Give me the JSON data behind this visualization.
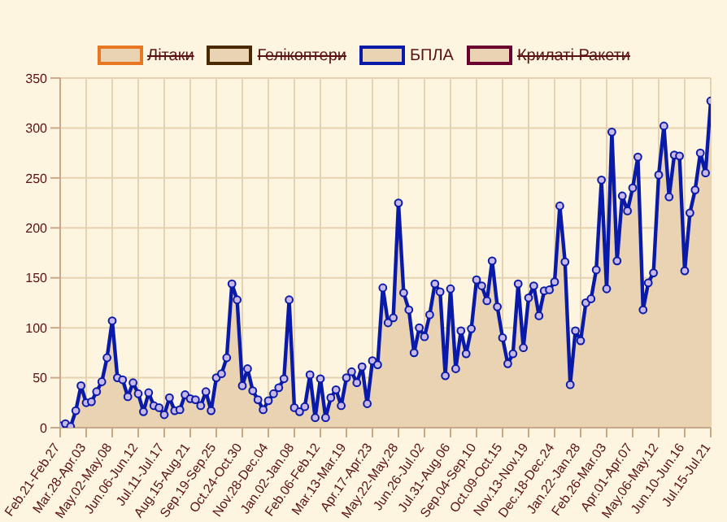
{
  "chart_data": {
    "type": "area",
    "categories": [
      "Feb.21-Feb.27",
      null,
      null,
      null,
      null,
      "Mar.28-Apr.03",
      null,
      null,
      null,
      null,
      "May.02-May.08",
      null,
      null,
      null,
      null,
      "Jun.06-Jun.12",
      null,
      null,
      null,
      null,
      "Jul.11-Jul.17",
      null,
      null,
      null,
      null,
      "Aug.15-Aug.21",
      null,
      null,
      null,
      null,
      "Sep.19-Sep.25",
      null,
      null,
      null,
      null,
      "Oct.24-Oct.30",
      null,
      null,
      null,
      null,
      "Nov.28-Dec.04",
      null,
      null,
      null,
      null,
      "Jan.02-Jan.08",
      null,
      null,
      null,
      null,
      "Feb.06-Feb.12",
      null,
      null,
      null,
      null,
      "Mar.13-Mar.19",
      null,
      null,
      null,
      null,
      "Apr.17-Apr.23",
      null,
      null,
      null,
      null,
      "May.22-May.28",
      null,
      null,
      null,
      null,
      "Jun.26-Jul.02",
      null,
      null,
      null,
      null,
      "Jul.31-Aug.06",
      null,
      null,
      null,
      null,
      "Sep.04-Sep.10",
      null,
      null,
      null,
      null,
      "Oct.09-Oct.15",
      null,
      null,
      null,
      null,
      "Nov.13-Nov.19",
      null,
      null,
      null,
      null,
      "Dec.18-Dec.24",
      null,
      null,
      null,
      null,
      "Jan.22-Jan.28",
      null,
      null,
      null,
      null,
      "Feb.26-Mar.03",
      null,
      null,
      null,
      null,
      "Apr.01-Apr.07",
      null,
      null,
      null,
      null,
      "May.06-May.12",
      null,
      null,
      null,
      null,
      "Jun.10-Jun.16",
      null,
      null,
      null,
      null,
      "Jul.15-Jul.21"
    ],
    "series": [
      {
        "name": "Літаки",
        "color": "#e87722",
        "values": [
          null,
          null,
          null,
          null,
          null,
          null,
          null,
          null,
          null,
          null,
          null,
          null,
          null,
          null,
          null,
          null,
          null,
          null,
          null,
          null,
          null,
          null,
          null,
          null,
          null,
          null,
          null,
          null,
          null,
          null,
          null,
          null,
          null,
          null,
          null,
          null,
          null,
          null,
          null,
          null,
          null,
          null,
          null,
          null,
          null,
          null,
          null,
          null,
          null,
          null,
          null,
          null,
          null,
          null,
          null,
          null,
          null,
          null,
          null,
          null,
          null,
          null,
          null,
          null,
          null,
          null,
          null,
          null,
          null,
          null,
          null,
          null,
          null,
          null,
          null,
          null,
          null,
          null,
          null,
          null,
          null,
          null,
          null,
          null,
          null,
          null,
          null,
          null,
          null,
          null,
          null,
          null,
          null,
          null,
          null,
          null,
          null,
          null,
          null,
          null,
          null,
          null,
          null,
          null,
          null,
          null,
          null,
          null,
          null,
          null,
          null,
          null,
          null,
          null,
          null,
          null,
          null,
          null,
          null,
          null,
          null,
          null,
          null,
          null,
          null,
          null
        ]
      },
      {
        "name": "Гелікоптери",
        "color": "#4a2800",
        "values": [
          null,
          null,
          null,
          null,
          null,
          null,
          null,
          null,
          null,
          null,
          null,
          null,
          null,
          null,
          null,
          null,
          null,
          null,
          null,
          null,
          null,
          null,
          null,
          null,
          null,
          null,
          null,
          null,
          null,
          null,
          null,
          null,
          null,
          null,
          null,
          null,
          null,
          null,
          null,
          null,
          null,
          null,
          null,
          null,
          null,
          null,
          null,
          null,
          null,
          null,
          null,
          null,
          null,
          null,
          null,
          null,
          null,
          null,
          null,
          null,
          null,
          null,
          null,
          null,
          null,
          null,
          null,
          null,
          null,
          null,
          null,
          null,
          null,
          null,
          null,
          null,
          null,
          null,
          null,
          null,
          null,
          null,
          null,
          null,
          null,
          null,
          null,
          null,
          null,
          null,
          null,
          null,
          null,
          null,
          null,
          null,
          null,
          null,
          null,
          null,
          null,
          null,
          null,
          null,
          null,
          null,
          null,
          null,
          null,
          null,
          null,
          null,
          null,
          null,
          null,
          null,
          null,
          null,
          null,
          null,
          null,
          null,
          null,
          null,
          null,
          null
        ]
      },
      {
        "name": "БПЛА",
        "color": "#0a1aa8",
        "values": [
          2,
          4,
          1,
          17,
          42,
          25,
          26,
          36,
          46,
          70,
          107,
          50,
          48,
          31,
          45,
          34,
          16,
          35,
          22,
          20,
          13,
          30,
          17,
          18,
          33,
          29,
          28,
          22,
          36,
          17,
          50,
          54,
          70,
          144,
          128,
          42,
          59,
          37,
          28,
          18,
          27,
          34,
          40,
          49,
          128,
          20,
          16,
          21,
          53,
          10,
          49,
          10,
          30,
          38,
          22,
          50,
          56,
          45,
          61,
          24,
          67,
          63,
          140,
          105,
          110,
          225,
          135,
          118,
          75,
          100,
          91,
          113,
          144,
          136,
          52,
          139,
          59,
          97,
          74,
          99,
          148,
          142,
          127,
          167,
          121,
          90,
          64,
          74,
          144,
          80,
          130,
          142,
          112,
          137,
          138,
          146,
          222,
          166,
          43,
          97,
          87,
          125,
          129,
          158,
          248,
          139,
          296,
          167,
          232,
          217,
          240,
          271,
          118,
          145,
          155,
          253,
          302,
          231,
          273,
          272,
          157,
          215,
          238,
          275,
          255,
          327
        ]
      },
      {
        "name": "Крилаті Ракети",
        "color": "#6a0030",
        "values": [
          null,
          null,
          null,
          null,
          null,
          null,
          null,
          null,
          null,
          null,
          null,
          null,
          null,
          null,
          null,
          null,
          null,
          null,
          null,
          null,
          null,
          null,
          null,
          null,
          null,
          null,
          null,
          null,
          null,
          null,
          null,
          null,
          null,
          null,
          null,
          null,
          null,
          null,
          null,
          null,
          null,
          null,
          null,
          null,
          null,
          null,
          null,
          null,
          null,
          null,
          null,
          null,
          null,
          null,
          null,
          null,
          null,
          null,
          null,
          null,
          null,
          null,
          null,
          null,
          null,
          null,
          null,
          null,
          null,
          null,
          null,
          null,
          null,
          null,
          null,
          null,
          null,
          null,
          null,
          null,
          null,
          null,
          null,
          null,
          null,
          null,
          null,
          null,
          null,
          null,
          null,
          null,
          null,
          null,
          null,
          null,
          null,
          null,
          null,
          null,
          null,
          null,
          null,
          null,
          null,
          null,
          null,
          null,
          null,
          null,
          null,
          null,
          null,
          null,
          null,
          null,
          null,
          null,
          null,
          null,
          null,
          null,
          null,
          null,
          null,
          null
        ]
      }
    ],
    "ylim": [
      0,
      350
    ],
    "yticks": [
      0,
      50,
      100,
      150,
      200,
      250,
      300,
      350
    ],
    "grid": true,
    "legend": "top",
    "marker": "circle",
    "line_style": "solid"
  }
}
